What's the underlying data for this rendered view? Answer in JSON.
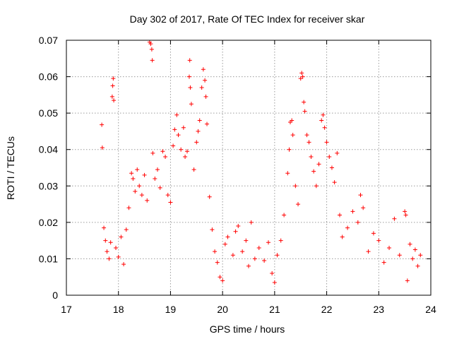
{
  "chart_data": {
    "type": "scatter",
    "title": "Day 302 of 2017, Rate Of TEC Index for receiver skar",
    "xlabel": "GPS time / hours",
    "ylabel": "ROTI / TECUs",
    "xlim": [
      17,
      24
    ],
    "ylim": [
      0,
      0.07
    ],
    "xticks": [
      17,
      18,
      19,
      20,
      21,
      22,
      23,
      24
    ],
    "xtick_labels": [
      "17",
      "18",
      "19",
      "20",
      "21",
      "22",
      "23",
      "24"
    ],
    "yticks": [
      0,
      0.01,
      0.02,
      0.03,
      0.04,
      0.05,
      0.06,
      0.07
    ],
    "ytick_labels": [
      "0",
      "0.01",
      "0.02",
      "0.03",
      "0.04",
      "0.05",
      "0.06",
      "0.07"
    ],
    "grid": true,
    "marker": "+",
    "marker_color": "#ff0000",
    "points": [
      [
        17.68,
        0.0468
      ],
      [
        17.69,
        0.0405
      ],
      [
        17.72,
        0.0185
      ],
      [
        17.75,
        0.015
      ],
      [
        17.78,
        0.012
      ],
      [
        17.82,
        0.01
      ],
      [
        17.85,
        0.0145
      ],
      [
        17.88,
        0.0545
      ],
      [
        17.89,
        0.0575
      ],
      [
        17.9,
        0.0595
      ],
      [
        17.91,
        0.0535
      ],
      [
        17.95,
        0.013
      ],
      [
        18.0,
        0.0105
      ],
      [
        18.05,
        0.016
      ],
      [
        18.1,
        0.0085
      ],
      [
        18.15,
        0.018
      ],
      [
        18.2,
        0.024
      ],
      [
        18.25,
        0.0335
      ],
      [
        18.28,
        0.032
      ],
      [
        18.32,
        0.0285
      ],
      [
        18.36,
        0.0345
      ],
      [
        18.4,
        0.03
      ],
      [
        18.45,
        0.0275
      ],
      [
        18.5,
        0.033
      ],
      [
        18.55,
        0.026
      ],
      [
        18.6,
        0.0695
      ],
      [
        18.62,
        0.069
      ],
      [
        18.64,
        0.0675
      ],
      [
        18.65,
        0.0645
      ],
      [
        18.66,
        0.039
      ],
      [
        18.7,
        0.032
      ],
      [
        18.75,
        0.0345
      ],
      [
        18.8,
        0.0295
      ],
      [
        18.85,
        0.0395
      ],
      [
        18.9,
        0.038
      ],
      [
        18.95,
        0.0275
      ],
      [
        19.0,
        0.0255
      ],
      [
        19.05,
        0.041
      ],
      [
        19.08,
        0.0455
      ],
      [
        19.12,
        0.0495
      ],
      [
        19.15,
        0.044
      ],
      [
        19.2,
        0.04
      ],
      [
        19.25,
        0.046
      ],
      [
        19.28,
        0.038
      ],
      [
        19.32,
        0.0395
      ],
      [
        19.36,
        0.06
      ],
      [
        19.37,
        0.0645
      ],
      [
        19.38,
        0.057
      ],
      [
        19.4,
        0.0525
      ],
      [
        19.45,
        0.0345
      ],
      [
        19.5,
        0.042
      ],
      [
        19.53,
        0.045
      ],
      [
        19.56,
        0.048
      ],
      [
        19.6,
        0.057
      ],
      [
        19.63,
        0.062
      ],
      [
        19.66,
        0.059
      ],
      [
        19.68,
        0.0545
      ],
      [
        19.7,
        0.047
      ],
      [
        19.75,
        0.027
      ],
      [
        19.8,
        0.018
      ],
      [
        19.85,
        0.012
      ],
      [
        19.9,
        0.009
      ],
      [
        19.95,
        0.005
      ],
      [
        20.0,
        0.004
      ],
      [
        20.05,
        0.014
      ],
      [
        20.1,
        0.016
      ],
      [
        20.2,
        0.011
      ],
      [
        20.25,
        0.0175
      ],
      [
        20.3,
        0.019
      ],
      [
        20.38,
        0.012
      ],
      [
        20.45,
        0.015
      ],
      [
        20.5,
        0.008
      ],
      [
        20.55,
        0.02
      ],
      [
        20.62,
        0.01
      ],
      [
        20.7,
        0.013
      ],
      [
        20.8,
        0.0095
      ],
      [
        20.88,
        0.0145
      ],
      [
        20.95,
        0.006
      ],
      [
        21.0,
        0.0035
      ],
      [
        21.05,
        0.011
      ],
      [
        21.12,
        0.015
      ],
      [
        21.18,
        0.022
      ],
      [
        21.25,
        0.0335
      ],
      [
        21.28,
        0.04
      ],
      [
        21.3,
        0.0475
      ],
      [
        21.33,
        0.048
      ],
      [
        21.35,
        0.044
      ],
      [
        21.4,
        0.03
      ],
      [
        21.45,
        0.025
      ],
      [
        21.5,
        0.0595
      ],
      [
        21.52,
        0.061
      ],
      [
        21.54,
        0.06
      ],
      [
        21.56,
        0.053
      ],
      [
        21.58,
        0.0505
      ],
      [
        21.62,
        0.044
      ],
      [
        21.66,
        0.042
      ],
      [
        21.7,
        0.038
      ],
      [
        21.75,
        0.034
      ],
      [
        21.8,
        0.03
      ],
      [
        21.85,
        0.036
      ],
      [
        21.9,
        0.048
      ],
      [
        21.93,
        0.0495
      ],
      [
        21.96,
        0.046
      ],
      [
        22.0,
        0.042
      ],
      [
        22.05,
        0.038
      ],
      [
        22.1,
        0.035
      ],
      [
        22.15,
        0.031
      ],
      [
        22.2,
        0.039
      ],
      [
        22.25,
        0.022
      ],
      [
        22.3,
        0.016
      ],
      [
        22.4,
        0.0185
      ],
      [
        22.5,
        0.023
      ],
      [
        22.6,
        0.02
      ],
      [
        22.65,
        0.0275
      ],
      [
        22.7,
        0.024
      ],
      [
        22.8,
        0.012
      ],
      [
        22.9,
        0.017
      ],
      [
        23.0,
        0.015
      ],
      [
        23.1,
        0.009
      ],
      [
        23.2,
        0.013
      ],
      [
        23.3,
        0.021
      ],
      [
        23.4,
        0.011
      ],
      [
        23.5,
        0.023
      ],
      [
        23.52,
        0.022
      ],
      [
        23.55,
        0.004
      ],
      [
        23.6,
        0.014
      ],
      [
        23.65,
        0.01
      ],
      [
        23.7,
        0.0125
      ],
      [
        23.75,
        0.008
      ],
      [
        23.8,
        0.011
      ]
    ]
  }
}
